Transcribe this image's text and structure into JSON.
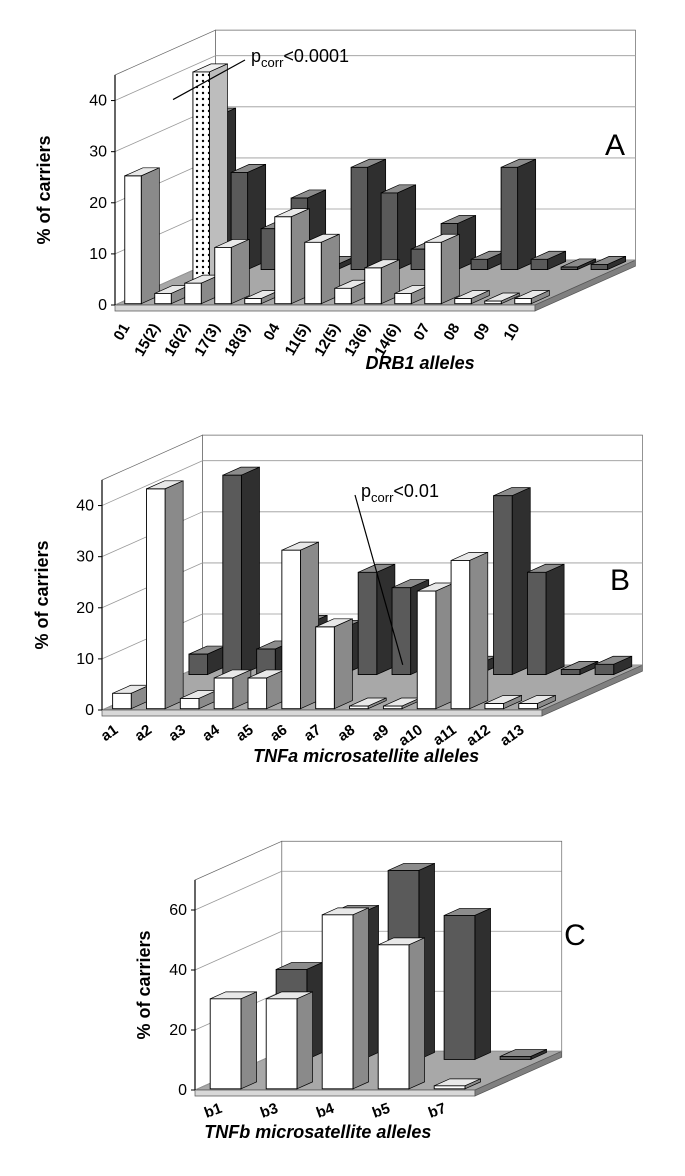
{
  "colors": {
    "bar_front": "#ffffff",
    "bar_front_stroke": "#000000",
    "bar_side": "#888888",
    "bar_top": "#cccccc",
    "bar_dark_front": "#555555",
    "bar_dark_side": "#333333",
    "bar_dark_top": "#888888",
    "bar_dotted_bg": "#ffffff",
    "floor": "#a8a8a8",
    "floor_side": "#808080",
    "grid": "#888888",
    "wall": "#ffffff",
    "text": "#000000"
  },
  "global": {
    "yaxis_label": "% of carriers"
  },
  "panel_a": {
    "letter": "A",
    "xaxis_label": "DRB1 alleles",
    "categories": [
      "01",
      "15(2)",
      "16(2)",
      "17(3)",
      "18(3)",
      "04",
      "11(5)",
      "12(5)",
      "13(6)",
      "14(6)",
      "07",
      "08",
      "09",
      "10"
    ],
    "series": [
      {
        "name": "white",
        "style": "white",
        "values": [
          25,
          2,
          4,
          11,
          1,
          17,
          12,
          3,
          7,
          2,
          12,
          1,
          0.5,
          1
        ]
      },
      {
        "name": "dotted",
        "style": "dotted",
        "values": [
          0,
          42,
          0,
          0,
          0,
          0,
          0,
          0,
          0,
          0,
          0,
          0,
          0,
          0
        ]
      },
      {
        "name": "dark",
        "style": "dark",
        "values": [
          30,
          19,
          8,
          14,
          1,
          20,
          15,
          4,
          9,
          2,
          20,
          2,
          0.5,
          1
        ]
      }
    ],
    "yticks": [
      0,
      10,
      20,
      30,
      40
    ],
    "ylim": [
      0,
      45
    ],
    "annotation": {
      "text": "p",
      "sub": "corr",
      "rest": "<0.0001",
      "target_cat": "15(2)"
    }
  },
  "panel_b": {
    "letter": "B",
    "xaxis_label": "TNFa microsatellite alleles",
    "categories": [
      "a1",
      "a2",
      "a3",
      "a4",
      "a5",
      "a6",
      "a7",
      "a8",
      "a9",
      "a10",
      "a11",
      "a12",
      "a13"
    ],
    "series": [
      {
        "name": "white",
        "style": "white",
        "values": [
          3,
          43,
          2,
          6,
          6,
          31,
          16,
          0.5,
          0.5,
          23,
          29,
          1,
          1
        ]
      },
      {
        "name": "dotted",
        "style": "dotted",
        "values": [
          0,
          0,
          0,
          0,
          0,
          0,
          0,
          0,
          9,
          0,
          0,
          0,
          0
        ]
      },
      {
        "name": "dark",
        "style": "dark",
        "values": [
          4,
          39,
          5,
          10,
          9,
          20,
          17,
          1,
          2,
          35,
          20,
          1,
          2
        ]
      }
    ],
    "yticks": [
      0,
      10,
      20,
      30,
      40
    ],
    "ylim": [
      0,
      45
    ],
    "annotation": {
      "text": "p",
      "sub": "corr",
      "rest": "<0.01",
      "target_cat": "a9"
    }
  },
  "panel_c": {
    "letter": "C",
    "xaxis_label": "TNFb microsatellite alleles",
    "categories": [
      "b1",
      "b3",
      "b4",
      "b5",
      "b7"
    ],
    "series": [
      {
        "name": "white",
        "style": "white",
        "values": [
          30,
          30,
          58,
          48,
          1
        ]
      },
      {
        "name": "dark",
        "style": "dark",
        "values": [
          30,
          49,
          63,
          48,
          1
        ]
      }
    ],
    "yticks": [
      0,
      20,
      40,
      60
    ],
    "ylim": [
      0,
      70
    ]
  }
}
